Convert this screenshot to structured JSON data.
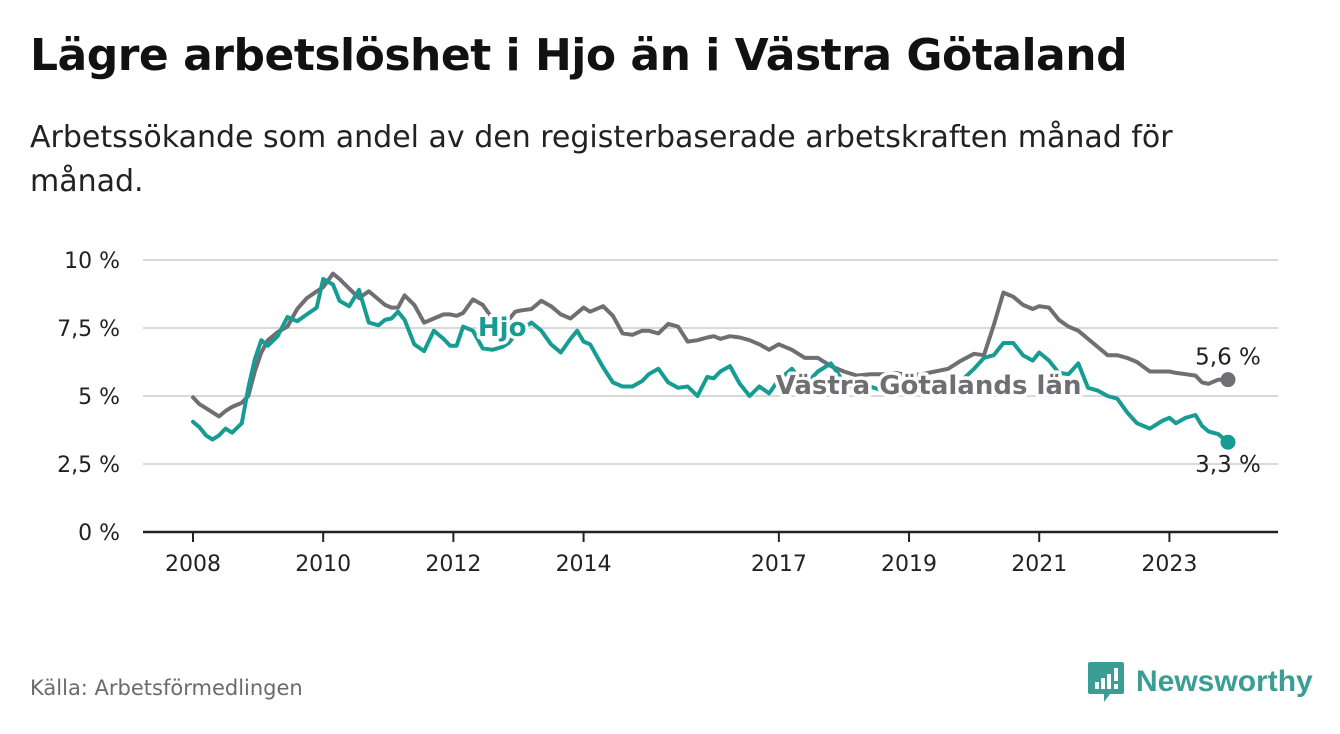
{
  "header": {
    "title": "Lägre arbetslöshet i Hjo än i Västra Götaland",
    "subtitle": "Arbetssökande som andel av den registerbaserade arbetskraften månad för månad."
  },
  "footer": {
    "source": "Källa: Arbetsförmedlingen",
    "brand": "Newsworthy"
  },
  "colors": {
    "hjo": "#169c92",
    "vg": "#6f6e73",
    "grid": "#d9d9d9",
    "axis": "#222222"
  },
  "chart_data": {
    "type": "line",
    "title": "Lägre arbetslöshet i Hjo än i Västra Götaland",
    "xlabel": "",
    "ylabel": "",
    "xlim": [
      2008.0,
      2024.6
    ],
    "ylim": [
      0,
      10
    ],
    "y_ticks": [
      0,
      2.5,
      5,
      7.5,
      10
    ],
    "y_tick_labels": [
      "0 %",
      "2,5 %",
      "5 %",
      "7,5 %",
      "10 %"
    ],
    "x_ticks": [
      2008,
      2010,
      2012,
      2014,
      2017,
      2019,
      2021,
      2023
    ],
    "x_tick_labels": [
      "2008",
      "2010",
      "2012",
      "2014",
      "2017",
      "2019",
      "2021",
      "2023"
    ],
    "grid": true,
    "legend": "inline labels",
    "series": [
      {
        "name": "Västra Götalands län",
        "label": "Västra Götalands län",
        "end_label": "5,6 %",
        "x": [
          2008.0,
          2008.1,
          2008.2,
          2008.3,
          2008.4,
          2008.5,
          2008.6,
          2008.75,
          2008.85,
          2008.95,
          2009.05,
          2009.15,
          2009.3,
          2009.45,
          2009.6,
          2009.75,
          2009.9,
          2010.0,
          2010.15,
          2010.25,
          2010.4,
          2010.55,
          2010.7,
          2010.85,
          2010.95,
          2011.05,
          2011.15,
          2011.25,
          2011.4,
          2011.55,
          2011.7,
          2011.85,
          2011.95,
          2012.05,
          2012.15,
          2012.3,
          2012.45,
          2012.6,
          2012.75,
          2012.85,
          2012.95,
          2013.05,
          2013.2,
          2013.35,
          2013.5,
          2013.65,
          2013.8,
          2013.9,
          2014.0,
          2014.1,
          2014.3,
          2014.45,
          2014.6,
          2014.75,
          2014.9,
          2015.0,
          2015.15,
          2015.3,
          2015.45,
          2015.6,
          2015.75,
          2015.9,
          2016.0,
          2016.1,
          2016.25,
          2016.4,
          2016.55,
          2016.7,
          2016.85,
          2017.0,
          2017.2,
          2017.4,
          2017.6,
          2017.8,
          2018.0,
          2018.2,
          2018.4,
          2018.6,
          2018.8,
          2019.0,
          2019.2,
          2019.4,
          2019.6,
          2019.8,
          2020.0,
          2020.15,
          2020.3,
          2020.45,
          2020.6,
          2020.75,
          2020.9,
          2021.0,
          2021.15,
          2021.3,
          2021.45,
          2021.6,
          2021.75,
          2021.9,
          2022.05,
          2022.2,
          2022.35,
          2022.5,
          2022.7,
          2022.9,
          2023.0,
          2023.1,
          2023.25,
          2023.4,
          2023.5,
          2023.6,
          2023.75,
          2023.9
        ],
        "values": [
          4.95,
          4.7,
          4.55,
          4.4,
          4.25,
          4.45,
          4.6,
          4.75,
          5.0,
          5.9,
          6.6,
          7.05,
          7.35,
          7.55,
          8.2,
          8.6,
          8.85,
          9.0,
          9.5,
          9.3,
          8.95,
          8.6,
          8.85,
          8.55,
          8.35,
          8.25,
          8.25,
          8.7,
          8.35,
          7.7,
          7.85,
          8.0,
          8.0,
          7.95,
          8.05,
          8.55,
          8.35,
          7.85,
          7.65,
          7.8,
          8.1,
          8.15,
          8.2,
          8.5,
          8.3,
          8.0,
          7.85,
          8.05,
          8.25,
          8.1,
          8.3,
          7.95,
          7.3,
          7.25,
          7.4,
          7.4,
          7.3,
          7.65,
          7.55,
          7.0,
          7.05,
          7.15,
          7.2,
          7.1,
          7.2,
          7.15,
          7.05,
          6.9,
          6.7,
          6.9,
          6.7,
          6.4,
          6.4,
          6.1,
          5.9,
          5.75,
          5.8,
          5.8,
          5.85,
          5.75,
          5.8,
          5.9,
          6.0,
          6.3,
          6.55,
          6.5,
          7.6,
          8.8,
          8.65,
          8.35,
          8.2,
          8.3,
          8.25,
          7.8,
          7.55,
          7.4,
          7.1,
          6.8,
          6.5,
          6.5,
          6.4,
          6.25,
          5.9,
          5.9,
          5.9,
          5.85,
          5.8,
          5.75,
          5.5,
          5.45,
          5.6,
          5.6
        ],
        "color": "#6f6e73"
      },
      {
        "name": "Hjo",
        "label": "Hjo",
        "end_label": "3,3 %",
        "x": [
          2008.0,
          2008.1,
          2008.2,
          2008.3,
          2008.4,
          2008.5,
          2008.6,
          2008.75,
          2008.85,
          2008.95,
          2009.05,
          2009.15,
          2009.3,
          2009.45,
          2009.6,
          2009.75,
          2009.9,
          2010.0,
          2010.15,
          2010.25,
          2010.4,
          2010.55,
          2010.7,
          2010.85,
          2010.95,
          2011.05,
          2011.15,
          2011.25,
          2011.4,
          2011.55,
          2011.7,
          2011.85,
          2011.95,
          2012.05,
          2012.15,
          2012.3,
          2012.45,
          2012.6,
          2012.75,
          2012.85,
          2012.95,
          2013.05,
          2013.2,
          2013.35,
          2013.5,
          2013.65,
          2013.8,
          2013.9,
          2014.0,
          2014.1,
          2014.3,
          2014.45,
          2014.6,
          2014.75,
          2014.9,
          2015.0,
          2015.15,
          2015.3,
          2015.45,
          2015.6,
          2015.75,
          2015.9,
          2016.0,
          2016.1,
          2016.25,
          2016.4,
          2016.55,
          2016.7,
          2016.85,
          2017.0,
          2017.2,
          2017.4,
          2017.6,
          2017.8,
          2018.0,
          2018.2,
          2018.4,
          2018.6,
          2018.8,
          2019.0,
          2019.2,
          2019.4,
          2019.6,
          2019.8,
          2020.0,
          2020.15,
          2020.3,
          2020.45,
          2020.6,
          2020.75,
          2020.9,
          2021.0,
          2021.15,
          2021.3,
          2021.45,
          2021.6,
          2021.75,
          2021.9,
          2022.05,
          2022.2,
          2022.35,
          2022.5,
          2022.7,
          2022.9,
          2023.0,
          2023.1,
          2023.25,
          2023.4,
          2023.5,
          2023.6,
          2023.75,
          2023.9
        ],
        "values": [
          4.05,
          3.85,
          3.55,
          3.4,
          3.55,
          3.8,
          3.65,
          4.0,
          5.3,
          6.35,
          7.05,
          6.85,
          7.2,
          7.9,
          7.75,
          8.0,
          8.25,
          9.3,
          9.1,
          8.5,
          8.3,
          8.9,
          7.7,
          7.6,
          7.8,
          7.85,
          8.1,
          7.8,
          6.9,
          6.65,
          7.4,
          7.1,
          6.85,
          6.85,
          7.55,
          7.4,
          6.75,
          6.7,
          6.8,
          6.95,
          7.25,
          7.45,
          7.7,
          7.4,
          6.9,
          6.6,
          7.1,
          7.4,
          7.0,
          6.9,
          6.05,
          5.5,
          5.35,
          5.35,
          5.55,
          5.8,
          6.0,
          5.5,
          5.3,
          5.35,
          5.0,
          5.7,
          5.65,
          5.9,
          6.1,
          5.45,
          5.0,
          5.35,
          5.1,
          5.6,
          6.0,
          5.4,
          5.9,
          6.2,
          5.5,
          5.2,
          5.35,
          5.2,
          5.4,
          5.1,
          5.45,
          5.1,
          5.3,
          5.55,
          6.0,
          6.4,
          6.5,
          6.95,
          6.95,
          6.5,
          6.3,
          6.6,
          6.3,
          5.85,
          5.8,
          6.2,
          5.3,
          5.2,
          5.0,
          4.9,
          4.4,
          4.0,
          3.8,
          4.1,
          4.2,
          4.0,
          4.2,
          4.3,
          3.9,
          3.7,
          3.6,
          3.3
        ],
        "color": "#169c92"
      }
    ]
  }
}
